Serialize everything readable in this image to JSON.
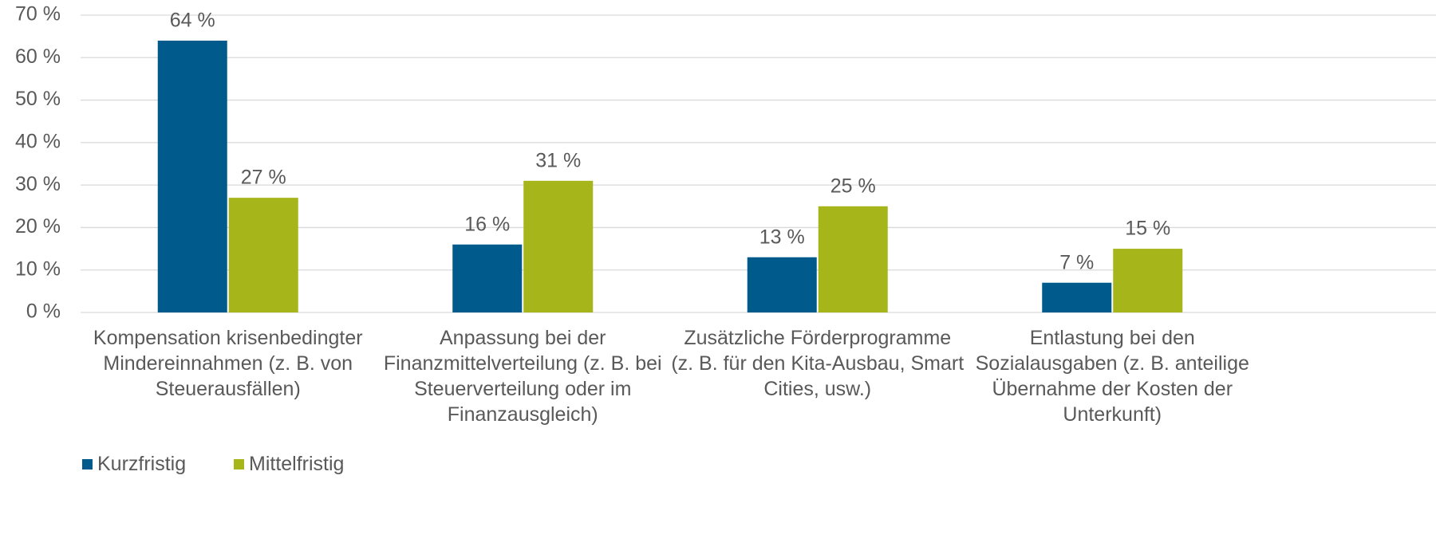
{
  "chart_data": {
    "type": "bar",
    "categories": [
      "Kompensation krisenbedingter Mindereinnahmen (z. B. von Steuerausfällen)",
      "Anpassung bei der Finanzmittelverteilung (z. B. bei Steuerverteilung oder im Finanzausgleich)",
      "Zusätzliche Förderprogramme (z. B. für den Kita-Ausbau, Smart Cities, usw.)",
      "Entlastung bei den Sozialausgaben (z. B. anteilige Übernahme der Kosten der Unterkunft)"
    ],
    "series": [
      {
        "name": "Kurzfristig",
        "color": "#005b8c",
        "values": [
          64,
          16,
          13,
          7
        ],
        "value_labels": [
          "64 %",
          "16 %",
          "13 %",
          "7 %"
        ]
      },
      {
        "name": "Mittelfristig",
        "color": "#a5b51a",
        "values": [
          27,
          31,
          25,
          15
        ],
        "value_labels": [
          "27 %",
          "31 %",
          "25 %",
          "15 %"
        ]
      }
    ],
    "ylim": [
      0,
      70
    ],
    "yticks": [
      {
        "value": 0,
        "label": "0 %"
      },
      {
        "value": 10,
        "label": "10 %"
      },
      {
        "value": 20,
        "label": "20 %"
      },
      {
        "value": 30,
        "label": "30 %"
      },
      {
        "value": 40,
        "label": "40 %"
      },
      {
        "value": 50,
        "label": "50 %"
      },
      {
        "value": 60,
        "label": "60 %"
      },
      {
        "value": 70,
        "label": "70 %"
      }
    ],
    "grid": true,
    "legend": "bottom-left"
  }
}
